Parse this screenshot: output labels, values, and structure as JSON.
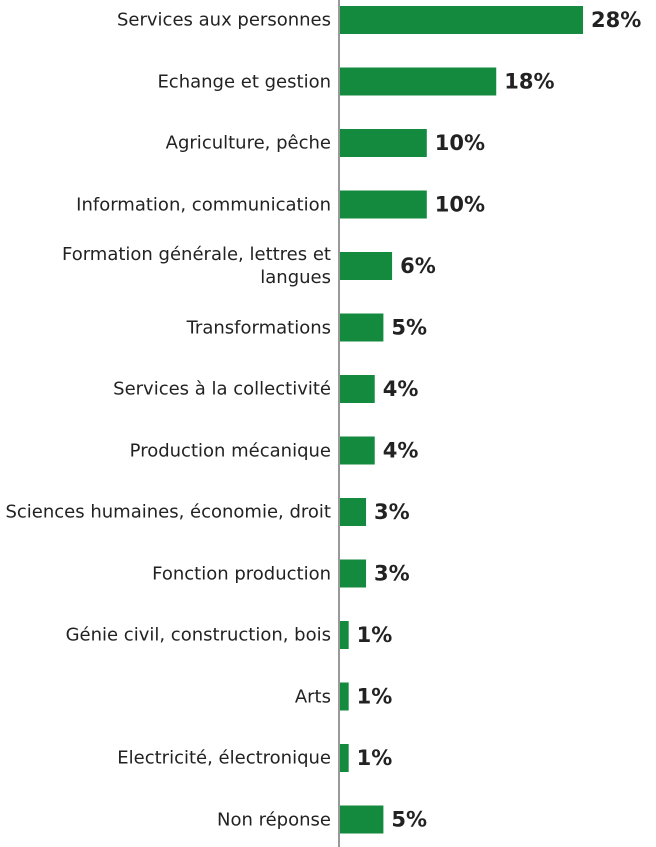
{
  "chart_data": {
    "type": "bar",
    "orientation": "horizontal",
    "categories": [
      "Services aux personnes",
      "Echange et gestion",
      "Agriculture, pêche",
      "Information, communication",
      "Formation générale, lettres et langues",
      "Transformations",
      "Services à la collectivité",
      "Production mécanique",
      "Sciences humaines, économie, droit",
      "Fonction production",
      "Génie civil, construction, bois",
      "Arts",
      "Electricité, électronique",
      "Non réponse"
    ],
    "values": [
      28,
      18,
      10,
      10,
      6,
      5,
      4,
      4,
      3,
      3,
      1,
      1,
      1,
      5
    ],
    "value_labels": [
      "28%",
      "18%",
      "10%",
      "10%",
      "6%",
      "5%",
      "4%",
      "4%",
      "3%",
      "3%",
      "1%",
      "1%",
      "1%",
      "5%"
    ],
    "color": "#138a3e"
  }
}
